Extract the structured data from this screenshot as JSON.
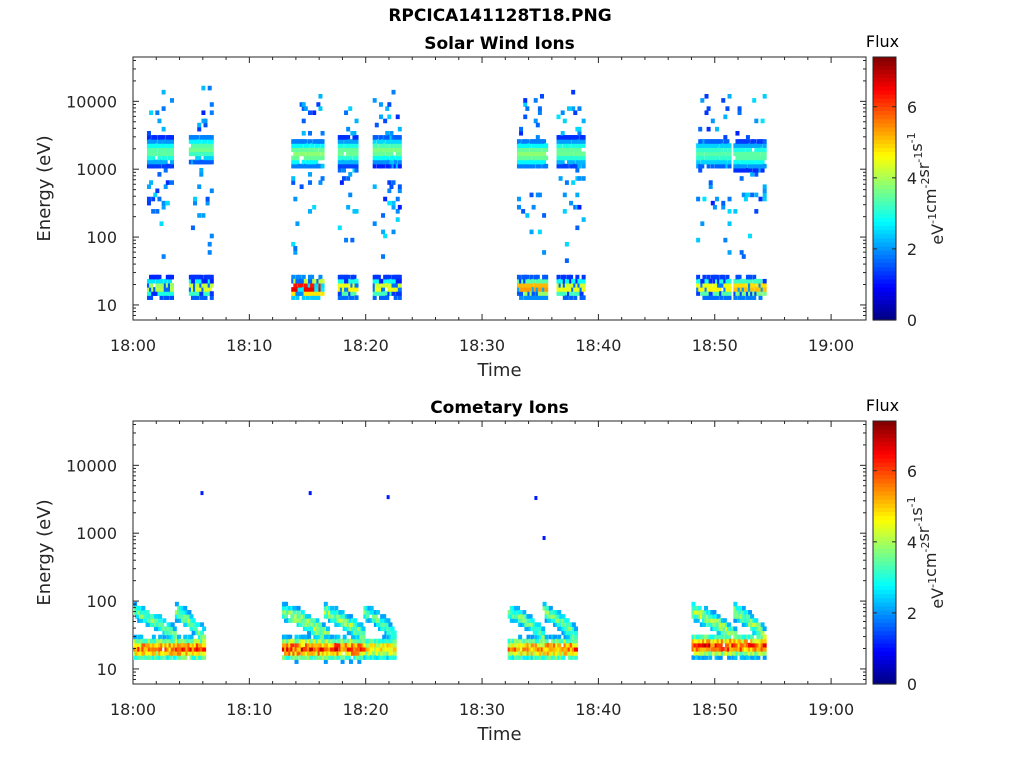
{
  "figure": {
    "title": "RPCICA141128T18.PNG"
  },
  "chart_data": [
    {
      "type": "heatmap",
      "title": "Solar Wind Ions",
      "xlabel": "Time",
      "ylabel": "Energy (eV)",
      "x_ticks": [
        "18:00",
        "18:10",
        "18:20",
        "18:30",
        "18:40",
        "18:50",
        "19:00"
      ],
      "y_ticks": [
        "10",
        "100",
        "1000",
        "10000"
      ],
      "y_scale": "log",
      "xlim_minutes": [
        0,
        63
      ],
      "ylim": [
        6,
        45000
      ],
      "colorbar": {
        "label_top": "Flux",
        "unit_label": "eV-1cm-2sr-1s-1",
        "range": [
          0,
          7.4
        ],
        "ticks": [
          "0",
          "2",
          "4",
          "6"
        ],
        "colormap": "jet"
      },
      "bursts": [
        {
          "t_start": 1.2,
          "t_end": 3.2,
          "energy_center": 1800,
          "flux_peak": 3.5,
          "low_energy_flux": 4.2
        },
        {
          "t_start": 4.8,
          "t_end": 6.6,
          "energy_center": 2000,
          "flux_peak": 3.6,
          "low_energy_flux": 4.5
        },
        {
          "t_start": 13.6,
          "t_end": 16.2,
          "energy_center": 1700,
          "flux_peak": 3.8,
          "low_energy_flux": 6.8
        },
        {
          "t_start": 17.6,
          "t_end": 19.2,
          "energy_center": 1800,
          "flux_peak": 3.6,
          "low_energy_flux": 4.8
        },
        {
          "t_start": 20.6,
          "t_end": 22.8,
          "energy_center": 1900,
          "flux_peak": 3.7,
          "low_energy_flux": 4.6
        },
        {
          "t_start": 33.0,
          "t_end": 35.4,
          "energy_center": 1700,
          "flux_peak": 3.8,
          "low_energy_flux": 5.5
        },
        {
          "t_start": 36.4,
          "t_end": 38.6,
          "energy_center": 1800,
          "flux_peak": 3.6,
          "low_energy_flux": 4.6
        },
        {
          "t_start": 48.4,
          "t_end": 51.2,
          "energy_center": 1700,
          "flux_peak": 3.4,
          "low_energy_flux": 4.8
        },
        {
          "t_start": 51.6,
          "t_end": 54.2,
          "energy_center": 1600,
          "flux_peak": 3.5,
          "low_energy_flux": 5.2
        }
      ]
    },
    {
      "type": "heatmap",
      "title": "Cometary Ions",
      "xlabel": "Time",
      "ylabel": "Energy (eV)",
      "x_ticks": [
        "18:00",
        "18:10",
        "18:20",
        "18:30",
        "18:40",
        "18:50",
        "19:00"
      ],
      "y_ticks": [
        "10",
        "100",
        "1000",
        "10000"
      ],
      "y_scale": "log",
      "xlim_minutes": [
        0,
        63
      ],
      "ylim": [
        6,
        45000
      ],
      "colorbar": {
        "label_top": "Flux",
        "unit_label": "eV-1cm-2sr-1s-1",
        "range": [
          0,
          7.4
        ],
        "ticks": [
          "0",
          "2",
          "4",
          "6"
        ],
        "colormap": "jet"
      },
      "bursts": [
        {
          "t_start": 0.0,
          "t_end": 3.6,
          "energy_center": 20,
          "flux_peak": 6.4,
          "low_energy_flux": 5.2
        },
        {
          "t_start": 3.6,
          "t_end": 6.0,
          "energy_center": 20,
          "flux_peak": 6.8,
          "low_energy_flux": 5.5
        },
        {
          "t_start": 12.8,
          "t_end": 16.6,
          "energy_center": 20,
          "flux_peak": 7.0,
          "low_energy_flux": 5.8
        },
        {
          "t_start": 16.4,
          "t_end": 19.8,
          "energy_center": 20,
          "flux_peak": 6.9,
          "low_energy_flux": 5.6
        },
        {
          "t_start": 19.8,
          "t_end": 22.4,
          "energy_center": 20,
          "flux_peak": 5.6,
          "low_energy_flux": 5.0
        },
        {
          "t_start": 32.2,
          "t_end": 35.2,
          "energy_center": 20,
          "flux_peak": 6.2,
          "low_energy_flux": 5.2
        },
        {
          "t_start": 35.2,
          "t_end": 38.0,
          "energy_center": 20,
          "flux_peak": 6.6,
          "low_energy_flux": 5.4
        },
        {
          "t_start": 48.0,
          "t_end": 51.6,
          "energy_center": 22,
          "flux_peak": 7.0,
          "low_energy_flux": 5.9
        },
        {
          "t_start": 51.6,
          "t_end": 54.2,
          "energy_center": 22,
          "flux_peak": 6.8,
          "low_energy_flux": 5.6
        }
      ],
      "isolated_points": [
        {
          "t": 5.8,
          "energy": 3900
        },
        {
          "t": 15.1,
          "energy": 3900
        },
        {
          "t": 21.8,
          "energy": 3400
        },
        {
          "t": 34.5,
          "energy": 3300
        },
        {
          "t": 35.2,
          "energy": 850
        }
      ]
    }
  ]
}
